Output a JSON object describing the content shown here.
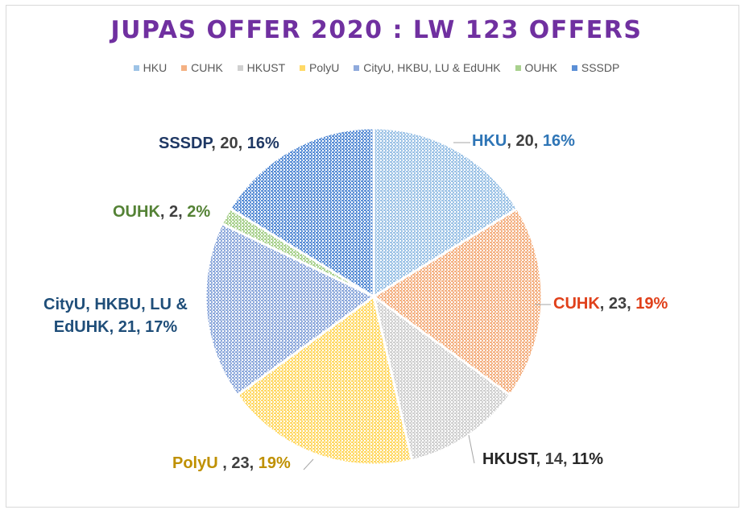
{
  "chart_data": {
    "type": "pie",
    "title": "JUPAS OFFER 2020 : LW 123 OFFERS",
    "legend_position": "top",
    "categories": [
      "HKU",
      "CUHK",
      "HKUST",
      "PolyU",
      "CityU, HKBU, LU & EdUHK",
      "OUHK",
      "SSSDP"
    ],
    "values": [
      20,
      23,
      14,
      23,
      21,
      2,
      20
    ],
    "percent_labels": [
      "16%",
      "19%",
      "11%",
      "19%",
      "17%",
      "2%",
      "16%"
    ],
    "value_labels": [
      "20",
      "23",
      "14",
      "23",
      "21",
      "2",
      "20"
    ],
    "label_names": [
      "HKU",
      "CUHK",
      "HKUST",
      "PolyU ",
      "CityU, HKBU, LU &\nEdUHK",
      "OUHK",
      "SSSDP"
    ],
    "colors": [
      "#9dc3e6",
      "#f4b183",
      "#d0d0d0",
      "#ffd966",
      "#8faadc",
      "#a9d18e",
      "#5b8fd6"
    ],
    "label_colors": {
      "name": [
        "#2e75b6",
        "#e0401a",
        "#262626",
        "#bf9000",
        "#1f4e79",
        "#548235",
        "#1f3864"
      ],
      "percent": [
        "#2e75b6",
        "#e0401a",
        "#262626",
        "#bf9000",
        "#1f4e79",
        "#548235",
        "#1f3864"
      ]
    },
    "label_placement": [
      "top-right",
      "right",
      "bottom-right",
      "bottom-left",
      "left",
      "left",
      "top-left"
    ]
  },
  "legend": {
    "items": [
      "HKU",
      "CUHK",
      "HKUST",
      "PolyU",
      "CityU, HKBU, LU & EdUHK",
      "OUHK",
      "SSSDP"
    ]
  }
}
